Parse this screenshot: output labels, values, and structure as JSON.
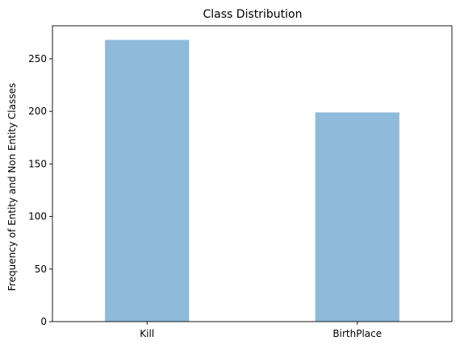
{
  "chart_data": {
    "type": "bar",
    "title": "Class Distribution",
    "xlabel": "",
    "ylabel": "Frequency of Entity and Non Entity Classes",
    "categories": [
      "Kill",
      "BirthPlace"
    ],
    "values": [
      268,
      199
    ],
    "ylim": [
      0,
      281.4
    ],
    "yticks": [
      0,
      50,
      100,
      150,
      200,
      250
    ],
    "bar_color": "#8fbad9",
    "grid": false,
    "legend": "none"
  }
}
